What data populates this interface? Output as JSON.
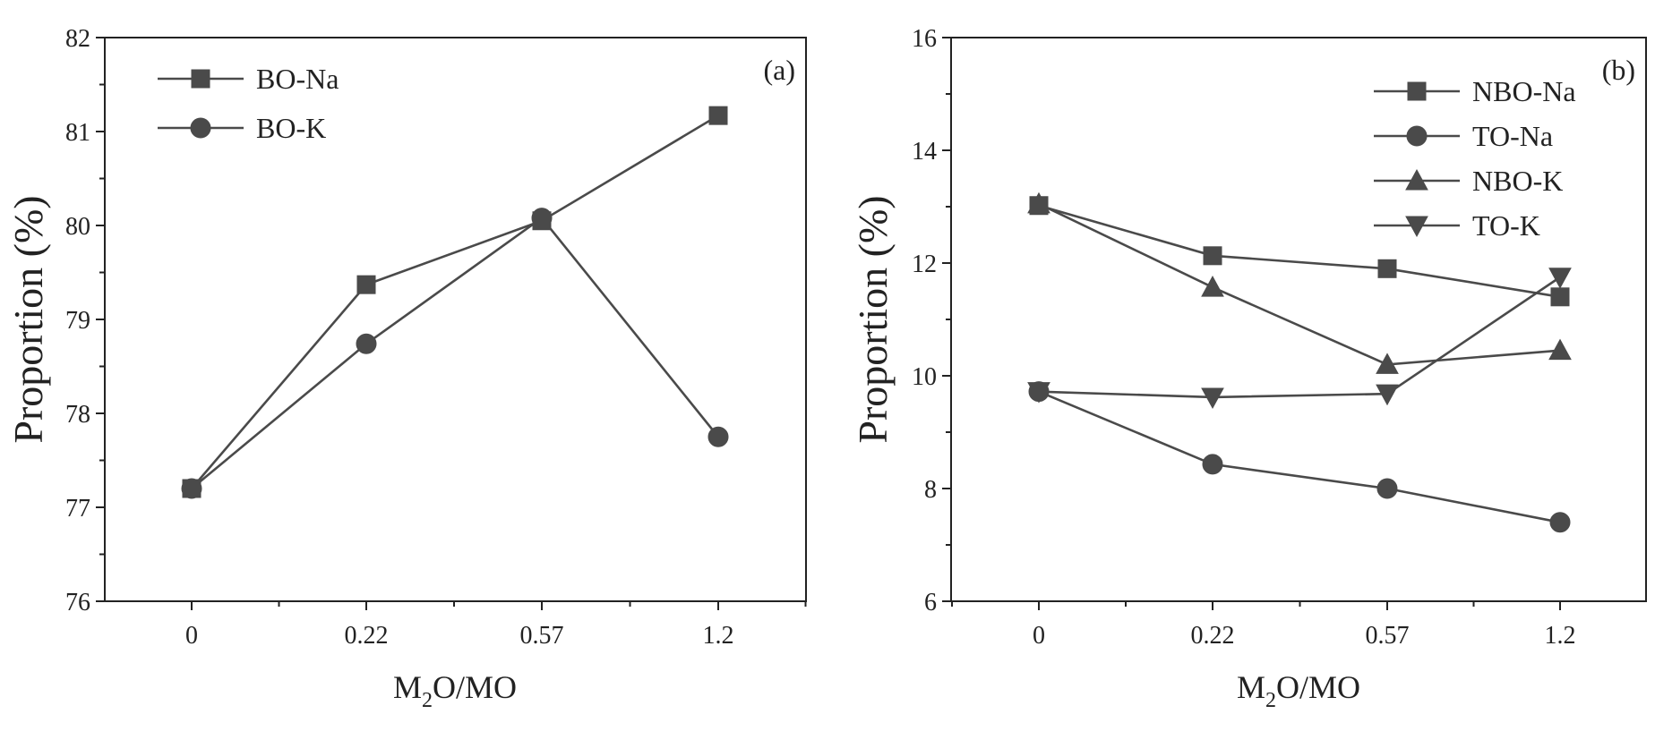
{
  "chart_data": [
    {
      "type": "line",
      "panel_label": "(a)",
      "xlabel": "M2O/MO",
      "xlabel_main": "M",
      "xlabel_sub": "2",
      "xlabel_rest": "O/MO",
      "ylabel": "Proportion (%)",
      "categories": [
        "0",
        "0.22",
        "0.57",
        "1.2"
      ],
      "ylim": [
        76,
        82
      ],
      "yticks": [
        76,
        77,
        78,
        79,
        80,
        81,
        82
      ],
      "legend_position": "top-left",
      "series": [
        {
          "name": "BO-Na",
          "marker": "square",
          "values": [
            77.2,
            79.37,
            80.05,
            81.17
          ]
        },
        {
          "name": "BO-K",
          "marker": "circle",
          "values": [
            77.2,
            78.74,
            80.08,
            77.75
          ]
        }
      ]
    },
    {
      "type": "line",
      "panel_label": "(b)",
      "xlabel": "M2O/MO",
      "xlabel_main": "M",
      "xlabel_sub": "2",
      "xlabel_rest": "O/MO",
      "ylabel": "Proportion (%)",
      "categories": [
        "0",
        "0.22",
        "0.57",
        "1.2"
      ],
      "ylim": [
        6,
        16
      ],
      "yticks": [
        6,
        8,
        10,
        12,
        14,
        16
      ],
      "legend_position": "top-right",
      "series": [
        {
          "name": "NBO-Na",
          "marker": "square",
          "values": [
            13.02,
            12.13,
            11.9,
            11.4
          ]
        },
        {
          "name": "TO-Na",
          "marker": "circle",
          "values": [
            9.72,
            8.43,
            8.0,
            7.4
          ]
        },
        {
          "name": "NBO-K",
          "marker": "triangle-up",
          "values": [
            13.05,
            11.57,
            10.2,
            10.45
          ]
        },
        {
          "name": "TO-K",
          "marker": "triangle-down",
          "values": [
            9.72,
            9.62,
            9.68,
            11.75
          ]
        }
      ]
    }
  ]
}
